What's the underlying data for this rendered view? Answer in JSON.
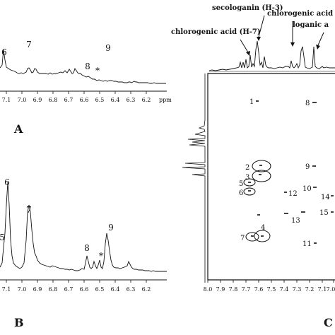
{
  "panels": {
    "A": {
      "letter": "A",
      "axis_unit": "ppm",
      "ticks": [
        "7.1",
        "7.0",
        "6.9",
        "6.8",
        "6.7",
        "6.6",
        "6.5",
        "6.4",
        "6.3",
        "6.2"
      ],
      "peak_labels": [
        "6",
        "7",
        "8",
        "*",
        "9"
      ]
    },
    "B": {
      "letter": "B",
      "ticks": [
        "7.1",
        "7.0",
        "6.9",
        "6.8",
        "6.7",
        "6.6",
        "6.5",
        "6.4",
        "6.3",
        "6.2"
      ],
      "peak_labels": [
        "5",
        "6",
        "7",
        "8",
        "*",
        "9"
      ]
    },
    "C": {
      "letter": "C",
      "annotations": [
        "secologanin (H-3)",
        "chlorogenic acid (H-7)",
        "chlorogenic acid",
        "loganic a"
      ],
      "ticks": [
        "8.0",
        "7.9",
        "7.8",
        "7.7",
        "7.6",
        "7.5",
        "7.4",
        "7.3",
        "7.2",
        "7.1",
        "7.0"
      ],
      "cross_labels": [
        "1",
        "2",
        "3",
        "4",
        "5",
        "6",
        "7",
        "8",
        "9",
        "10",
        "11",
        "12",
        "13",
        "14",
        "15"
      ]
    }
  },
  "colors": {
    "ink": "#111111",
    "background": "#ffffff"
  }
}
